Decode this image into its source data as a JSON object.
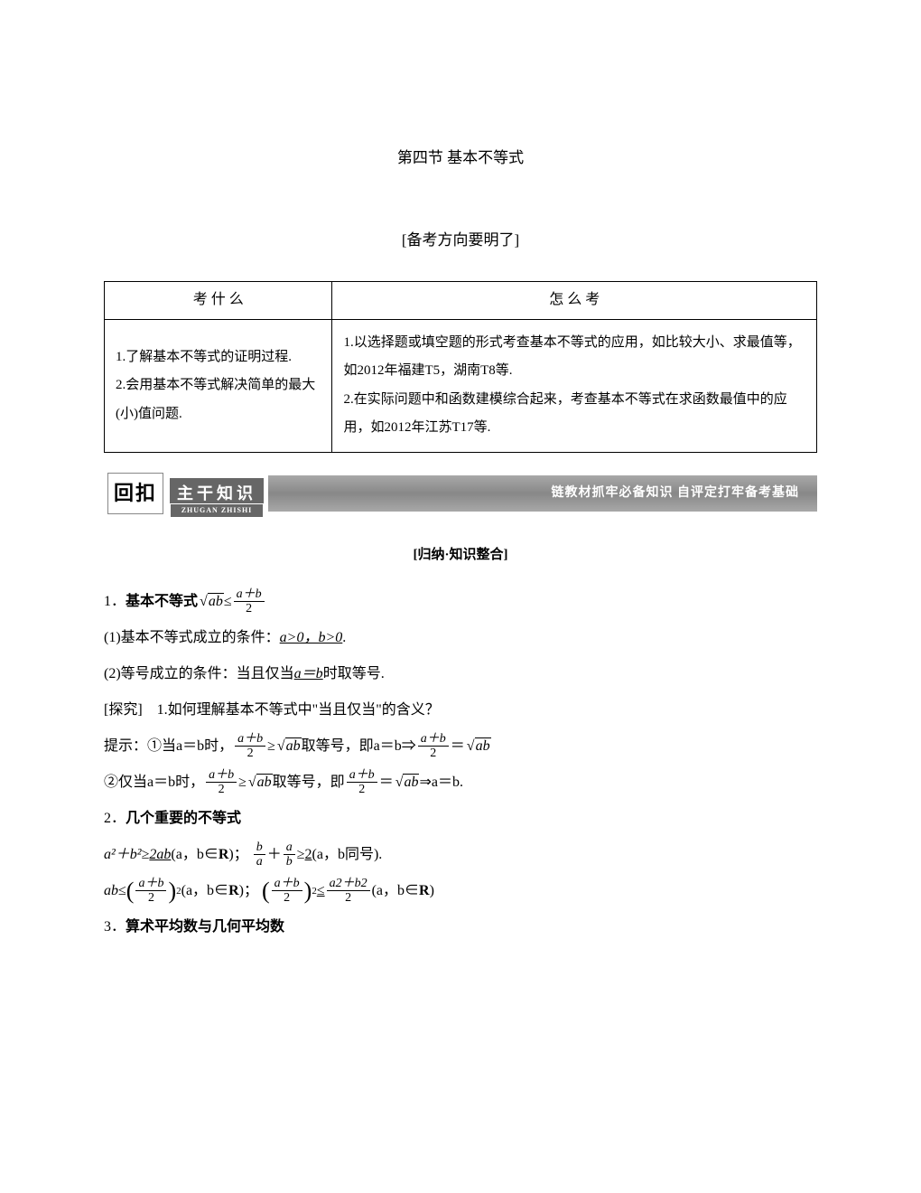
{
  "title": "第四节  基本不等式",
  "subtitle": "[备考方向要明了]",
  "table": {
    "headers": [
      "考 什 么",
      "怎 么 考"
    ],
    "left": "1.了解基本不等式的证明过程.\n2.会用基本不等式解决简单的最大(小)值问题.",
    "right": "1.以选择题或填空题的形式考查基本不等式的应用，如比较大小、求最值等，如2012年福建T5，湖南T8等.\n2.在实际问题中和函数建模综合起来，考查基本不等式在求函数最值中的应用，如2012年江苏T17等."
  },
  "banner": {
    "left_box": "回扣",
    "label": "主干知识",
    "pinyin": "ZHUGAN ZHISHI",
    "right": "链教材抓牢必备知识  自评定打牢备考基础"
  },
  "section_heading": "[归纳·知识整合]",
  "lines": {
    "l1_prefix": "1．",
    "l1_bold": "基本不等式",
    "l1_math_leq": "≤",
    "l1_num": "a＋b",
    "l1_den": "2",
    "l1_radicand": "ab",
    "l2": "(1)基本不等式成立的条件：",
    "l2_ul": "a>0，b>0",
    "l2_end": ".",
    "l3": "(2)等号成立的条件：当且仅当",
    "l3_ul": "a＝b",
    "l3_end": "时取等号.",
    "l4": "[探究]　1.如何理解基本不等式中\"当且仅当\"的含义？",
    "l5_pre": "提示：①当a＝b时，",
    "l5_mid": "取等号，即a＝b⇒",
    "l5_geq": "≥",
    "l5_eq": "＝",
    "l6_pre": "②仅当a＝b时，",
    "l6_mid": "取等号，即",
    "l6_end": "⇒a＝b.",
    "l7_prefix": "2．",
    "l7_bold": "几个重要的不等式",
    "l8_pre": "a²＋b²≥",
    "l8_ul": "2ab",
    "l8_mid": "(a，b∈",
    "l8_R": "R",
    "l8_mid2": ")；",
    "l8_frac_b": "b",
    "l8_frac_a": "a",
    "l8_plus": "＋",
    "l8_geq": "≥",
    "l8_ul2": "2",
    "l8_end": "(a，b同号).",
    "l9_pre": "ab",
    "l9_leq": "≤",
    "l9_num": "a＋b",
    "l9_den": "2",
    "l9_sq": "2",
    "l9_mid": "(a，b∈",
    "l9_R": "R",
    "l9_mid2": ")；",
    "l9_leq2": "≤",
    "l9_num2": "a2＋b2",
    "l9_den2": "2",
    "l9_end": "(a，b∈",
    "l9_R2": "R",
    "l9_end2": ")",
    "l10_prefix": "3．",
    "l10_bold": "算术平均数与几何平均数"
  },
  "colors": {
    "text": "#000000",
    "bg": "#ffffff",
    "banner_bg": "#999999",
    "banner_label_bg": "#666666"
  }
}
